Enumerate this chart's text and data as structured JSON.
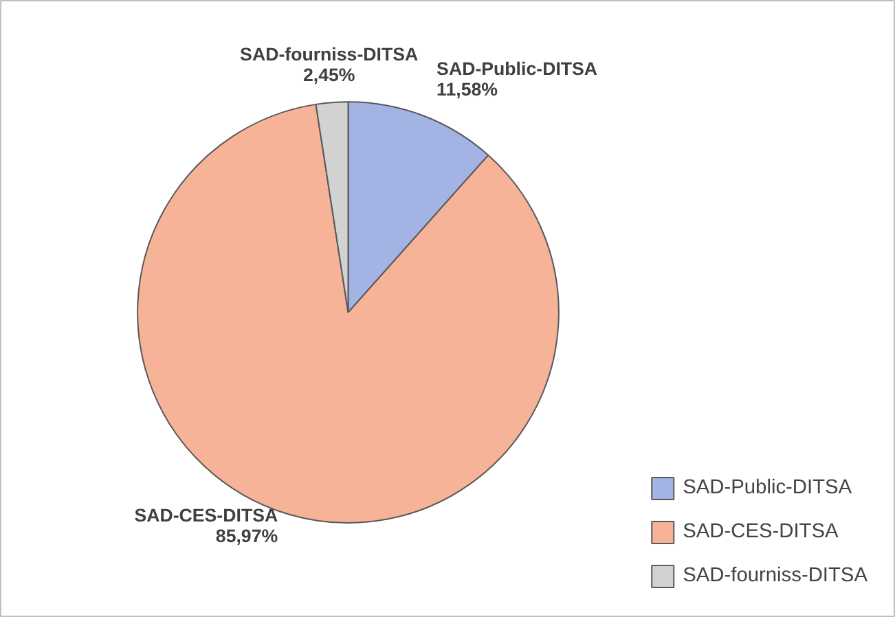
{
  "chart_data": {
    "type": "pie",
    "categories": [
      "SAD-Public-DITSA",
      "SAD-CES-DITSA",
      "SAD-fourniss-DITSA"
    ],
    "values": [
      11.58,
      85.97,
      2.45
    ],
    "value_labels": [
      "11,58%",
      "85,97%",
      "2,45%"
    ],
    "colors": [
      "#a3b3e3",
      "#f6b397",
      "#d2d2d2"
    ],
    "legend": "bottom right"
  }
}
